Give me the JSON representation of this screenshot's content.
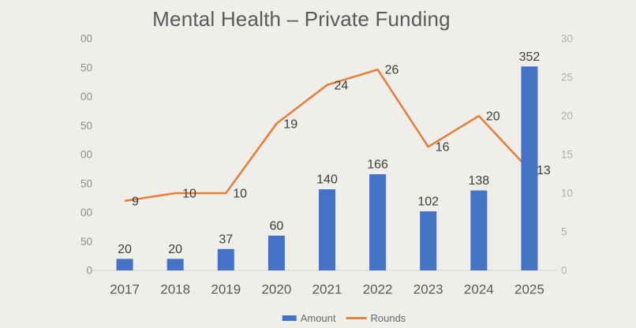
{
  "title": "Mental Health – Private Funding",
  "colors": {
    "background": "#f0eeeb",
    "bar": "#4472c4",
    "line": "#e2813c",
    "title_text": "#5a5a5a",
    "data_label": "#3d3d3d",
    "x_tick": "#595959",
    "y_tick_left": "#8f8d89",
    "y_tick_right": "#b2b0ac",
    "axis_line": "#d8d5d1",
    "legend_text": "#6a6a6a"
  },
  "chart_data": {
    "type": "bar",
    "subtype": "combo-bar-line",
    "title": "Mental Health – Private Funding",
    "categories": [
      "2017",
      "2018",
      "2019",
      "2020",
      "2021",
      "2022",
      "2023",
      "2024",
      "2025"
    ],
    "series": [
      {
        "name": "Amount",
        "type": "bar",
        "axis": "left",
        "values": [
          20,
          20,
          37,
          60,
          140,
          166,
          102,
          138,
          352
        ]
      },
      {
        "name": "Rounds",
        "type": "line",
        "axis": "right",
        "values": [
          9,
          10,
          10,
          19,
          24,
          26,
          16,
          20,
          13
        ]
      }
    ],
    "left_axis": {
      "range": [
        0,
        400
      ],
      "tick_step": 50,
      "visible_tick_labels_top_to_bottom": [
        "00",
        "50",
        "00",
        "50",
        "00",
        "50",
        "00",
        "50",
        "0"
      ],
      "note": "labels clipped at left edge of screenshot"
    },
    "right_axis": {
      "range": [
        0,
        30
      ],
      "tick_step": 5,
      "tick_labels_top_to_bottom": [
        "30",
        "25",
        "20",
        "15",
        "10",
        "5",
        "0"
      ]
    },
    "gridlines": false,
    "data_labels": true,
    "legend_position": "bottom"
  },
  "legend": {
    "items": [
      {
        "label": "Amount",
        "swatch": "bar"
      },
      {
        "label": "Rounds",
        "swatch": "line"
      }
    ]
  }
}
